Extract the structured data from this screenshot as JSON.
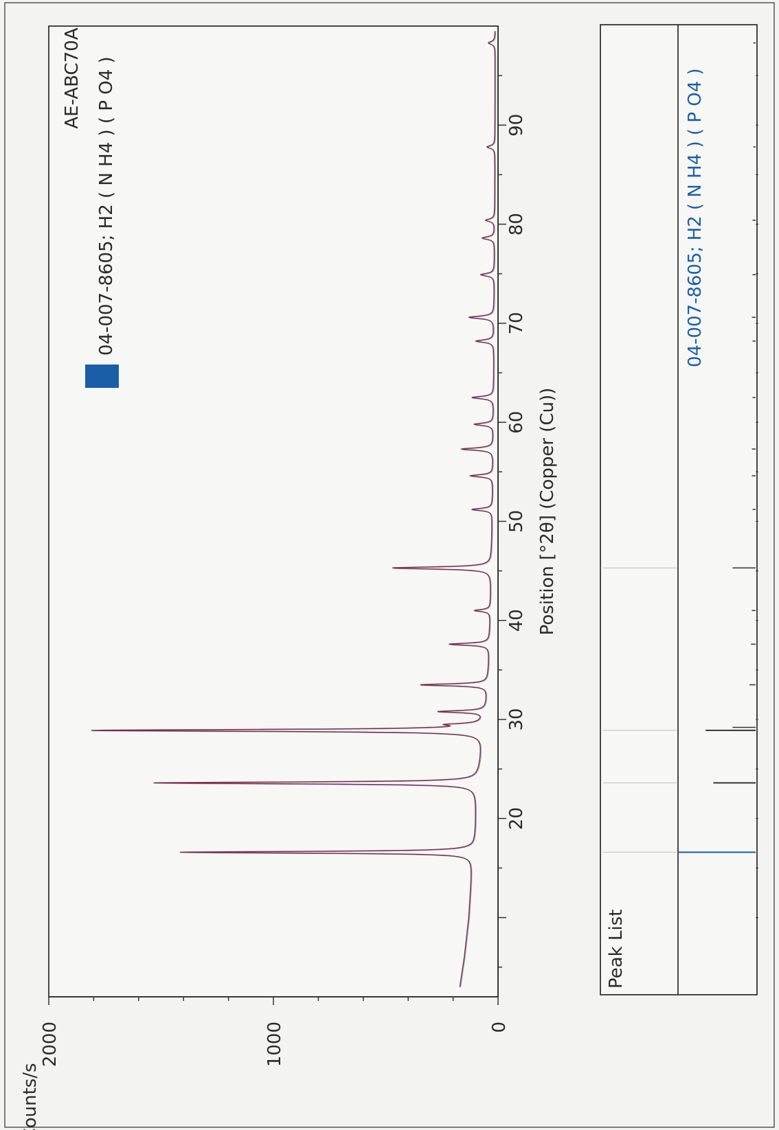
{
  "chart_data": [
    {
      "type": "line",
      "title": "AE-ABC70A",
      "xlabel": "Position [°2θ] (Copper (Cu))",
      "ylabel": "Counts/s",
      "xlim": [
        2,
        100
      ],
      "ylim": [
        0,
        2000
      ],
      "x_ticks": [
        20,
        30,
        40,
        50,
        60,
        70,
        80,
        90
      ],
      "y_ticks": [
        0,
        1000,
        2000
      ],
      "legend": {
        "label": "04-007-8605; H2 ( N H4 ) ( P O4 )",
        "color": "#1a5ea8",
        "placement": "top-right"
      },
      "series": [
        {
          "name": "AE-ABC70A",
          "color": "#7a2a4a",
          "baseline": [
            [
              3,
              170
            ],
            [
              6,
              150
            ],
            [
              10,
              130
            ],
            [
              15,
              115
            ],
            [
              16.8,
              110
            ],
            [
              17.5,
              100
            ],
            [
              23,
              95
            ],
            [
              23.8,
              85
            ],
            [
              25,
              80
            ],
            [
              27,
              70
            ],
            [
              28.7,
              60
            ],
            [
              29.5,
              58
            ],
            [
              31,
              50
            ],
            [
              33,
              45
            ],
            [
              36,
              40
            ],
            [
              40,
              35
            ],
            [
              45,
              30
            ],
            [
              50,
              26
            ],
            [
              55,
              22
            ],
            [
              60,
              20
            ],
            [
              70,
              18
            ],
            [
              80,
              15
            ],
            [
              90,
              14
            ],
            [
              100,
              13
            ]
          ],
          "peaks": [
            {
              "x": 16.6,
              "height": 1305
            },
            {
              "x": 23.6,
              "height": 1445
            },
            {
              "x": 28.9,
              "height": 1745
            },
            {
              "x": 29.5,
              "height": 120
            },
            {
              "x": 30.8,
              "height": 210
            },
            {
              "x": 33.5,
              "height": 300
            },
            {
              "x": 37.6,
              "height": 180
            },
            {
              "x": 41.0,
              "height": 70
            },
            {
              "x": 45.3,
              "height": 440
            },
            {
              "x": 51.2,
              "height": 90
            },
            {
              "x": 54.6,
              "height": 100
            },
            {
              "x": 57.3,
              "height": 140
            },
            {
              "x": 59.8,
              "height": 85
            },
            {
              "x": 62.5,
              "height": 95
            },
            {
              "x": 68.2,
              "height": 80
            },
            {
              "x": 70.6,
              "height": 110
            },
            {
              "x": 74.9,
              "height": 60
            },
            {
              "x": 78.6,
              "height": 55
            },
            {
              "x": 80.4,
              "height": 40
            },
            {
              "x": 87.8,
              "height": 35
            },
            {
              "x": 98.3,
              "height": 30
            }
          ]
        }
      ]
    },
    {
      "type": "bar",
      "title": "Peak List",
      "reference_label": "04-007-8605; H2 ( N H4 ) ( P O4 )",
      "reference_color": "#1a5ea8",
      "peak_list_positions": [
        16.6,
        23.6,
        28.9,
        45.3
      ],
      "reference_lines": [
        {
          "x": 16.6,
          "intensity": 1.0
        },
        {
          "x": 23.6,
          "intensity": 0.55
        },
        {
          "x": 28.9,
          "intensity": 0.65
        },
        {
          "x": 29.2,
          "intensity": 0.3
        },
        {
          "x": 33.5,
          "intensity": 0.08
        },
        {
          "x": 37.6,
          "intensity": 0.06
        },
        {
          "x": 41.0,
          "intensity": 0.05
        },
        {
          "x": 45.3,
          "intensity": 0.3
        },
        {
          "x": 51.2,
          "intensity": 0.04
        },
        {
          "x": 54.6,
          "intensity": 0.05
        },
        {
          "x": 57.3,
          "intensity": 0.05
        },
        {
          "x": 62.5,
          "intensity": 0.04
        },
        {
          "x": 68.2,
          "intensity": 0.04
        },
        {
          "x": 70.6,
          "intensity": 0.05
        },
        {
          "x": 74.9,
          "intensity": 0.04
        },
        {
          "x": 80.4,
          "intensity": 0.04
        },
        {
          "x": 87.8,
          "intensity": 0.03
        },
        {
          "x": 98.3,
          "intensity": 0.03
        }
      ]
    }
  ]
}
